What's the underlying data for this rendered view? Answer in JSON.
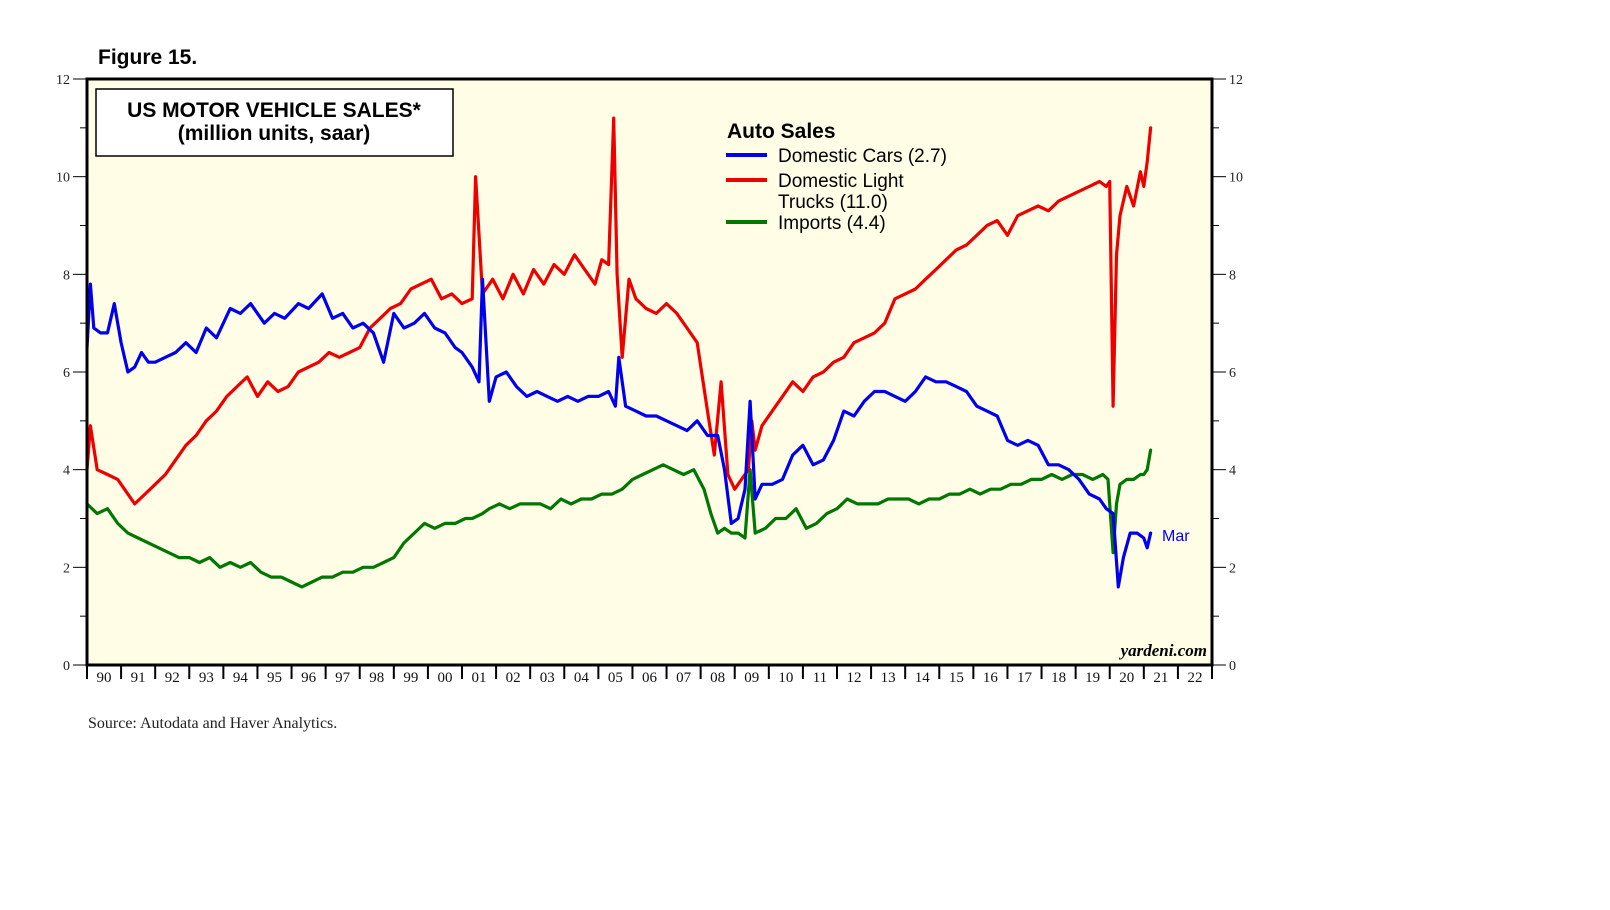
{
  "figure_label": "Figure 15.",
  "source": "Source: Autodata and Haver Analytics.",
  "watermark": "yardeni.com",
  "chart_data": {
    "type": "line",
    "title": "US MOTOR VEHICLE SALES*",
    "subtitle": "(million units, saar)",
    "legend_title": "Auto Sales",
    "legend_placement": "top-center",
    "ylim": [
      0,
      12
    ],
    "y_ticks": [
      0,
      2,
      4,
      6,
      8,
      10,
      12
    ],
    "xlim": [
      1990,
      2023
    ],
    "x_tick_labels": [
      "90",
      "91",
      "92",
      "93",
      "94",
      "95",
      "96",
      "97",
      "98",
      "99",
      "00",
      "01",
      "02",
      "03",
      "04",
      "05",
      "06",
      "07",
      "08",
      "09",
      "10",
      "11",
      "12",
      "13",
      "14",
      "15",
      "16",
      "17",
      "18",
      "19",
      "20",
      "21",
      "22"
    ],
    "end_annotation": "Mar",
    "series": [
      {
        "name": "Domestic Cars (2.7)",
        "legend_line1": "Domestic Cars (2.7)",
        "color": "#0000ee",
        "x": [
          1990.0,
          1990.1,
          1990.2,
          1990.4,
          1990.6,
          1990.8,
          1991.0,
          1991.2,
          1991.4,
          1991.6,
          1991.8,
          1992.0,
          1992.3,
          1992.6,
          1992.9,
          1993.2,
          1993.5,
          1993.8,
          1994.2,
          1994.5,
          1994.8,
          1995.2,
          1995.5,
          1995.8,
          1996.2,
          1996.5,
          1996.9,
          1997.2,
          1997.5,
          1997.8,
          1998.1,
          1998.4,
          1998.7,
          1999.0,
          1999.3,
          1999.6,
          1999.9,
          2000.2,
          2000.5,
          2000.8,
          2001.0,
          2001.3,
          2001.5,
          2001.6,
          2001.8,
          2002.0,
          2002.3,
          2002.6,
          2002.9,
          2003.2,
          2003.5,
          2003.8,
          2004.1,
          2004.4,
          2004.7,
          2005.0,
          2005.3,
          2005.5,
          2005.6,
          2005.8,
          2006.1,
          2006.4,
          2006.7,
          2007.0,
          2007.3,
          2007.6,
          2007.9,
          2008.2,
          2008.5,
          2008.7,
          2008.9,
          2009.1,
          2009.3,
          2009.45,
          2009.6,
          2009.8,
          2010.1,
          2010.4,
          2010.7,
          2011.0,
          2011.3,
          2011.6,
          2011.9,
          2012.2,
          2012.5,
          2012.8,
          2013.1,
          2013.4,
          2013.7,
          2014.0,
          2014.3,
          2014.6,
          2014.9,
          2015.2,
          2015.5,
          2015.8,
          2016.1,
          2016.4,
          2016.7,
          2017.0,
          2017.3,
          2017.6,
          2017.9,
          2018.2,
          2018.5,
          2018.8,
          2019.1,
          2019.4,
          2019.7,
          2019.9,
          2020.1,
          2020.25,
          2020.4,
          2020.6,
          2020.8,
          2021.0,
          2021.1,
          2021.2
        ],
        "values": [
          6.5,
          7.8,
          6.9,
          6.8,
          6.8,
          7.4,
          6.6,
          6.0,
          6.1,
          6.4,
          6.2,
          6.2,
          6.3,
          6.4,
          6.6,
          6.4,
          6.9,
          6.7,
          7.3,
          7.2,
          7.4,
          7.0,
          7.2,
          7.1,
          7.4,
          7.3,
          7.6,
          7.1,
          7.2,
          6.9,
          7.0,
          6.8,
          6.2,
          7.2,
          6.9,
          7.0,
          7.2,
          6.9,
          6.8,
          6.5,
          6.4,
          6.1,
          5.8,
          7.9,
          5.4,
          5.9,
          6.0,
          5.7,
          5.5,
          5.6,
          5.5,
          5.4,
          5.5,
          5.4,
          5.5,
          5.5,
          5.6,
          5.3,
          6.3,
          5.3,
          5.2,
          5.1,
          5.1,
          5.0,
          4.9,
          4.8,
          5.0,
          4.7,
          4.7,
          4.0,
          2.9,
          3.0,
          3.6,
          5.4,
          3.4,
          3.7,
          3.7,
          3.8,
          4.3,
          4.5,
          4.1,
          4.2,
          4.6,
          5.2,
          5.1,
          5.4,
          5.6,
          5.6,
          5.5,
          5.4,
          5.6,
          5.9,
          5.8,
          5.8,
          5.7,
          5.6,
          5.3,
          5.2,
          5.1,
          4.6,
          4.5,
          4.6,
          4.5,
          4.1,
          4.1,
          4.0,
          3.8,
          3.5,
          3.4,
          3.2,
          3.1,
          1.6,
          2.2,
          2.7,
          2.7,
          2.6,
          2.4,
          2.7
        ]
      },
      {
        "name": "Domestic Light Trucks (11.0)",
        "legend_line1": "Domestic Light",
        "legend_line2": "Trucks (11.0)",
        "color": "#ee0000",
        "x": [
          1990.0,
          1990.1,
          1990.3,
          1990.6,
          1990.9,
          1991.1,
          1991.4,
          1991.7,
          1992.0,
          1992.3,
          1992.6,
          1992.9,
          1993.2,
          1993.5,
          1993.8,
          1994.1,
          1994.4,
          1994.7,
          1995.0,
          1995.3,
          1995.6,
          1995.9,
          1996.2,
          1996.5,
          1996.8,
          1997.1,
          1997.4,
          1997.7,
          1998.0,
          1998.3,
          1998.6,
          1998.9,
          1999.2,
          1999.5,
          1999.8,
          2000.1,
          2000.4,
          2000.7,
          2001.0,
          2001.3,
          2001.4,
          2001.6,
          2001.9,
          2002.2,
          2002.5,
          2002.8,
          2003.1,
          2003.4,
          2003.7,
          2004.0,
          2004.3,
          2004.6,
          2004.9,
          2005.1,
          2005.3,
          2005.45,
          2005.55,
          2005.7,
          2005.9,
          2006.1,
          2006.4,
          2006.7,
          2007.0,
          2007.3,
          2007.6,
          2007.9,
          2008.2,
          2008.4,
          2008.6,
          2008.8,
          2009.0,
          2009.2,
          2009.4,
          2009.5,
          2009.6,
          2009.8,
          2010.1,
          2010.4,
          2010.7,
          2011.0,
          2011.3,
          2011.6,
          2011.9,
          2012.2,
          2012.5,
          2012.8,
          2013.1,
          2013.4,
          2013.7,
          2014.0,
          2014.3,
          2014.6,
          2014.9,
          2015.2,
          2015.5,
          2015.8,
          2016.1,
          2016.4,
          2016.7,
          2017.0,
          2017.3,
          2017.6,
          2017.9,
          2018.2,
          2018.5,
          2018.8,
          2019.1,
          2019.4,
          2019.7,
          2019.9,
          2020.0,
          2020.1,
          2020.2,
          2020.3,
          2020.5,
          2020.7,
          2020.9,
          2021.0,
          2021.1,
          2021.2
        ],
        "values": [
          4.0,
          4.9,
          4.0,
          3.9,
          3.8,
          3.6,
          3.3,
          3.5,
          3.7,
          3.9,
          4.2,
          4.5,
          4.7,
          5.0,
          5.2,
          5.5,
          5.7,
          5.9,
          5.5,
          5.8,
          5.6,
          5.7,
          6.0,
          6.1,
          6.2,
          6.4,
          6.3,
          6.4,
          6.5,
          6.9,
          7.1,
          7.3,
          7.4,
          7.7,
          7.8,
          7.9,
          7.5,
          7.6,
          7.4,
          7.5,
          10.0,
          7.6,
          7.9,
          7.5,
          8.0,
          7.6,
          8.1,
          7.8,
          8.2,
          8.0,
          8.4,
          8.1,
          7.8,
          8.3,
          8.2,
          11.2,
          8.0,
          6.3,
          7.9,
          7.5,
          7.3,
          7.2,
          7.4,
          7.2,
          6.9,
          6.6,
          5.2,
          4.3,
          5.8,
          3.9,
          3.6,
          3.8,
          4.0,
          5.0,
          4.4,
          4.9,
          5.2,
          5.5,
          5.8,
          5.6,
          5.9,
          6.0,
          6.2,
          6.3,
          6.6,
          6.7,
          6.8,
          7.0,
          7.5,
          7.6,
          7.7,
          7.9,
          8.1,
          8.3,
          8.5,
          8.6,
          8.8,
          9.0,
          9.1,
          8.8,
          9.2,
          9.3,
          9.4,
          9.3,
          9.5,
          9.6,
          9.7,
          9.8,
          9.9,
          9.8,
          9.9,
          5.3,
          8.4,
          9.2,
          9.8,
          9.4,
          10.1,
          9.8,
          10.3,
          11.0
        ]
      },
      {
        "name": "Imports (4.4)",
        "legend_line1": "Imports (4.4)",
        "color": "#007700",
        "x": [
          1990.0,
          1990.3,
          1990.6,
          1990.9,
          1991.2,
          1991.5,
          1991.8,
          1992.1,
          1992.4,
          1992.7,
          1993.0,
          1993.3,
          1993.6,
          1993.9,
          1994.2,
          1994.5,
          1994.8,
          1995.1,
          1995.4,
          1995.7,
          1996.0,
          1996.3,
          1996.6,
          1996.9,
          1997.2,
          1997.5,
          1997.8,
          1998.1,
          1998.4,
          1998.7,
          1999.0,
          1999.3,
          1999.6,
          1999.9,
          2000.2,
          2000.5,
          2000.8,
          2001.1,
          2001.3,
          2001.6,
          2001.8,
          2002.1,
          2002.4,
          2002.7,
          2003.0,
          2003.3,
          2003.6,
          2003.9,
          2004.2,
          2004.5,
          2004.8,
          2005.1,
          2005.4,
          2005.7,
          2006.0,
          2006.3,
          2006.6,
          2006.9,
          2007.2,
          2007.5,
          2007.8,
          2008.1,
          2008.3,
          2008.5,
          2008.7,
          2008.9,
          2009.1,
          2009.3,
          2009.45,
          2009.6,
          2009.9,
          2010.2,
          2010.5,
          2010.8,
          2011.1,
          2011.4,
          2011.7,
          2012.0,
          2012.3,
          2012.6,
          2012.9,
          2013.2,
          2013.5,
          2013.8,
          2014.1,
          2014.4,
          2014.7,
          2015.0,
          2015.3,
          2015.6,
          2015.9,
          2016.2,
          2016.5,
          2016.8,
          2017.1,
          2017.4,
          2017.7,
          2018.0,
          2018.3,
          2018.6,
          2018.9,
          2019.2,
          2019.5,
          2019.8,
          2019.95,
          2020.1,
          2020.2,
          2020.3,
          2020.5,
          2020.7,
          2020.9,
          2021.0,
          2021.1,
          2021.2
        ],
        "values": [
          3.3,
          3.1,
          3.2,
          2.9,
          2.7,
          2.6,
          2.5,
          2.4,
          2.3,
          2.2,
          2.2,
          2.1,
          2.2,
          2.0,
          2.1,
          2.0,
          2.1,
          1.9,
          1.8,
          1.8,
          1.7,
          1.6,
          1.7,
          1.8,
          1.8,
          1.9,
          1.9,
          2.0,
          2.0,
          2.1,
          2.2,
          2.5,
          2.7,
          2.9,
          2.8,
          2.9,
          2.9,
          3.0,
          3.0,
          3.1,
          3.2,
          3.3,
          3.2,
          3.3,
          3.3,
          3.3,
          3.2,
          3.4,
          3.3,
          3.4,
          3.4,
          3.5,
          3.5,
          3.6,
          3.8,
          3.9,
          4.0,
          4.1,
          4.0,
          3.9,
          4.0,
          3.6,
          3.1,
          2.7,
          2.8,
          2.7,
          2.7,
          2.6,
          4.0,
          2.7,
          2.8,
          3.0,
          3.0,
          3.2,
          2.8,
          2.9,
          3.1,
          3.2,
          3.4,
          3.3,
          3.3,
          3.3,
          3.4,
          3.4,
          3.4,
          3.3,
          3.4,
          3.4,
          3.5,
          3.5,
          3.6,
          3.5,
          3.6,
          3.6,
          3.7,
          3.7,
          3.8,
          3.8,
          3.9,
          3.8,
          3.9,
          3.9,
          3.8,
          3.9,
          3.8,
          2.3,
          3.3,
          3.7,
          3.8,
          3.8,
          3.9,
          3.9,
          4.0,
          4.4
        ]
      }
    ]
  }
}
